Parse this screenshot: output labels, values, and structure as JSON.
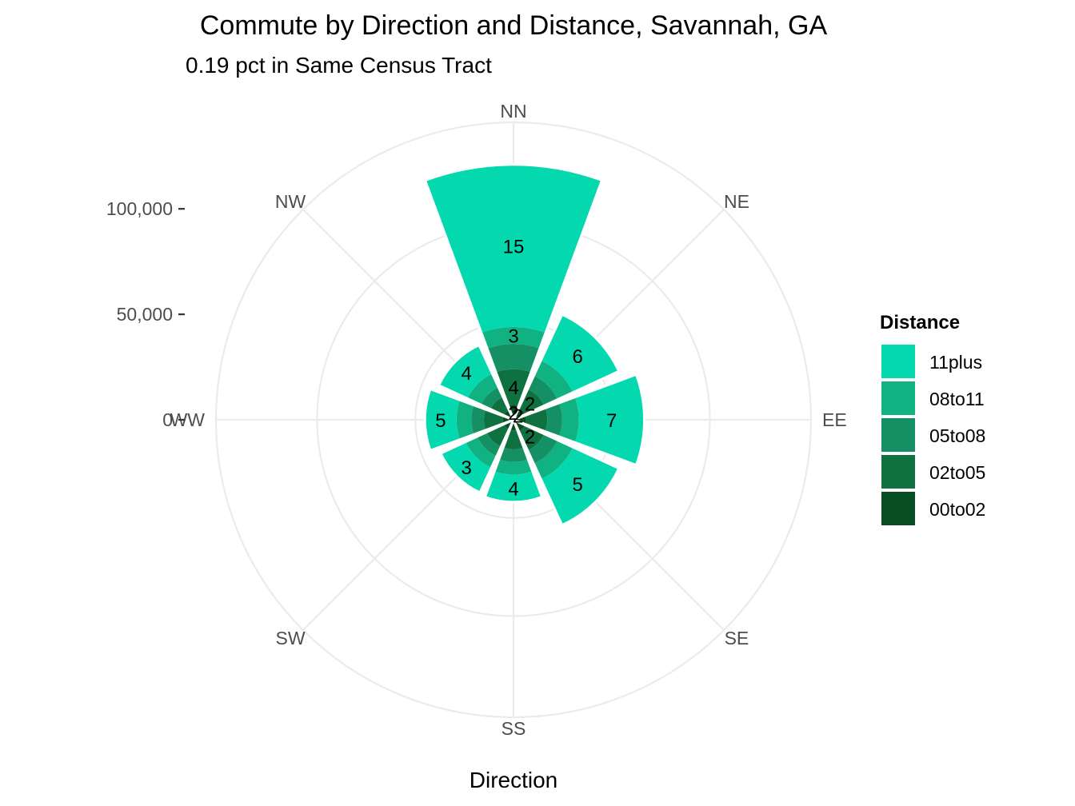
{
  "chart_data": {
    "type": "bar",
    "coord": "polar",
    "title": "Commute by Direction and Distance, Savannah, GA",
    "subtitle": "0.19 pct in Same Census Tract",
    "xlabel": "Direction",
    "ylabel": "",
    "categories": [
      "NN",
      "NE",
      "EE",
      "SE",
      "SS",
      "SW",
      "WW",
      "NW"
    ],
    "y_ticks": [
      0,
      50000,
      100000
    ],
    "y_tick_labels": [
      "0",
      "50,000",
      "100,000"
    ],
    "ylim": [
      0,
      141000
    ],
    "grid": true,
    "legend": {
      "title": "Distance",
      "position": "right"
    },
    "stacking_order": [
      "00to02",
      "02to05",
      "05to08",
      "08to11",
      "11plus"
    ],
    "series": [
      {
        "name": "11plus",
        "color": "#03d8af",
        "values": [
          77000,
          24000,
          31000,
          24000,
          13000,
          13000,
          15000,
          15000
        ]
      },
      {
        "name": "08to11",
        "color": "#11b281",
        "values": [
          8000,
          8000,
          8000,
          8000,
          6000,
          6000,
          7000,
          7000
        ]
      },
      {
        "name": "05to08",
        "color": "#159064",
        "values": [
          12000,
          7000,
          7000,
          7000,
          6000,
          5000,
          6000,
          5000
        ]
      },
      {
        "name": "02to05",
        "color": "#107140",
        "values": [
          17000,
          10000,
          10000,
          10000,
          9000,
          9000,
          9000,
          7000
        ]
      },
      {
        "name": "00to02",
        "color": "#074f23",
        "values": [
          7000,
          6000,
          6000,
          6000,
          5000,
          5000,
          5000,
          5000
        ]
      }
    ],
    "segment_labels": [
      {
        "category": "NN",
        "series": "11plus",
        "text": "15"
      },
      {
        "category": "NN",
        "series": "08to11",
        "text": "3"
      },
      {
        "category": "NN",
        "series": "02to05",
        "text": "4"
      },
      {
        "category": "NN",
        "series": "00to02",
        "text": "2"
      },
      {
        "category": "NE",
        "series": "11plus",
        "text": "6"
      },
      {
        "category": "NE",
        "series": "02to05",
        "text": "2"
      },
      {
        "category": "NE",
        "series": "00to02",
        "text": "2"
      },
      {
        "category": "EE",
        "series": "11plus",
        "text": "7"
      },
      {
        "category": "SE",
        "series": "11plus",
        "text": "5"
      },
      {
        "category": "SE",
        "series": "02to05",
        "text": "2"
      },
      {
        "category": "SS",
        "series": "11plus",
        "text": "4"
      },
      {
        "category": "SW",
        "series": "11plus",
        "text": "3"
      },
      {
        "category": "WW",
        "series": "11plus",
        "text": "5"
      },
      {
        "category": "NW",
        "series": "11plus",
        "text": "4"
      }
    ]
  }
}
